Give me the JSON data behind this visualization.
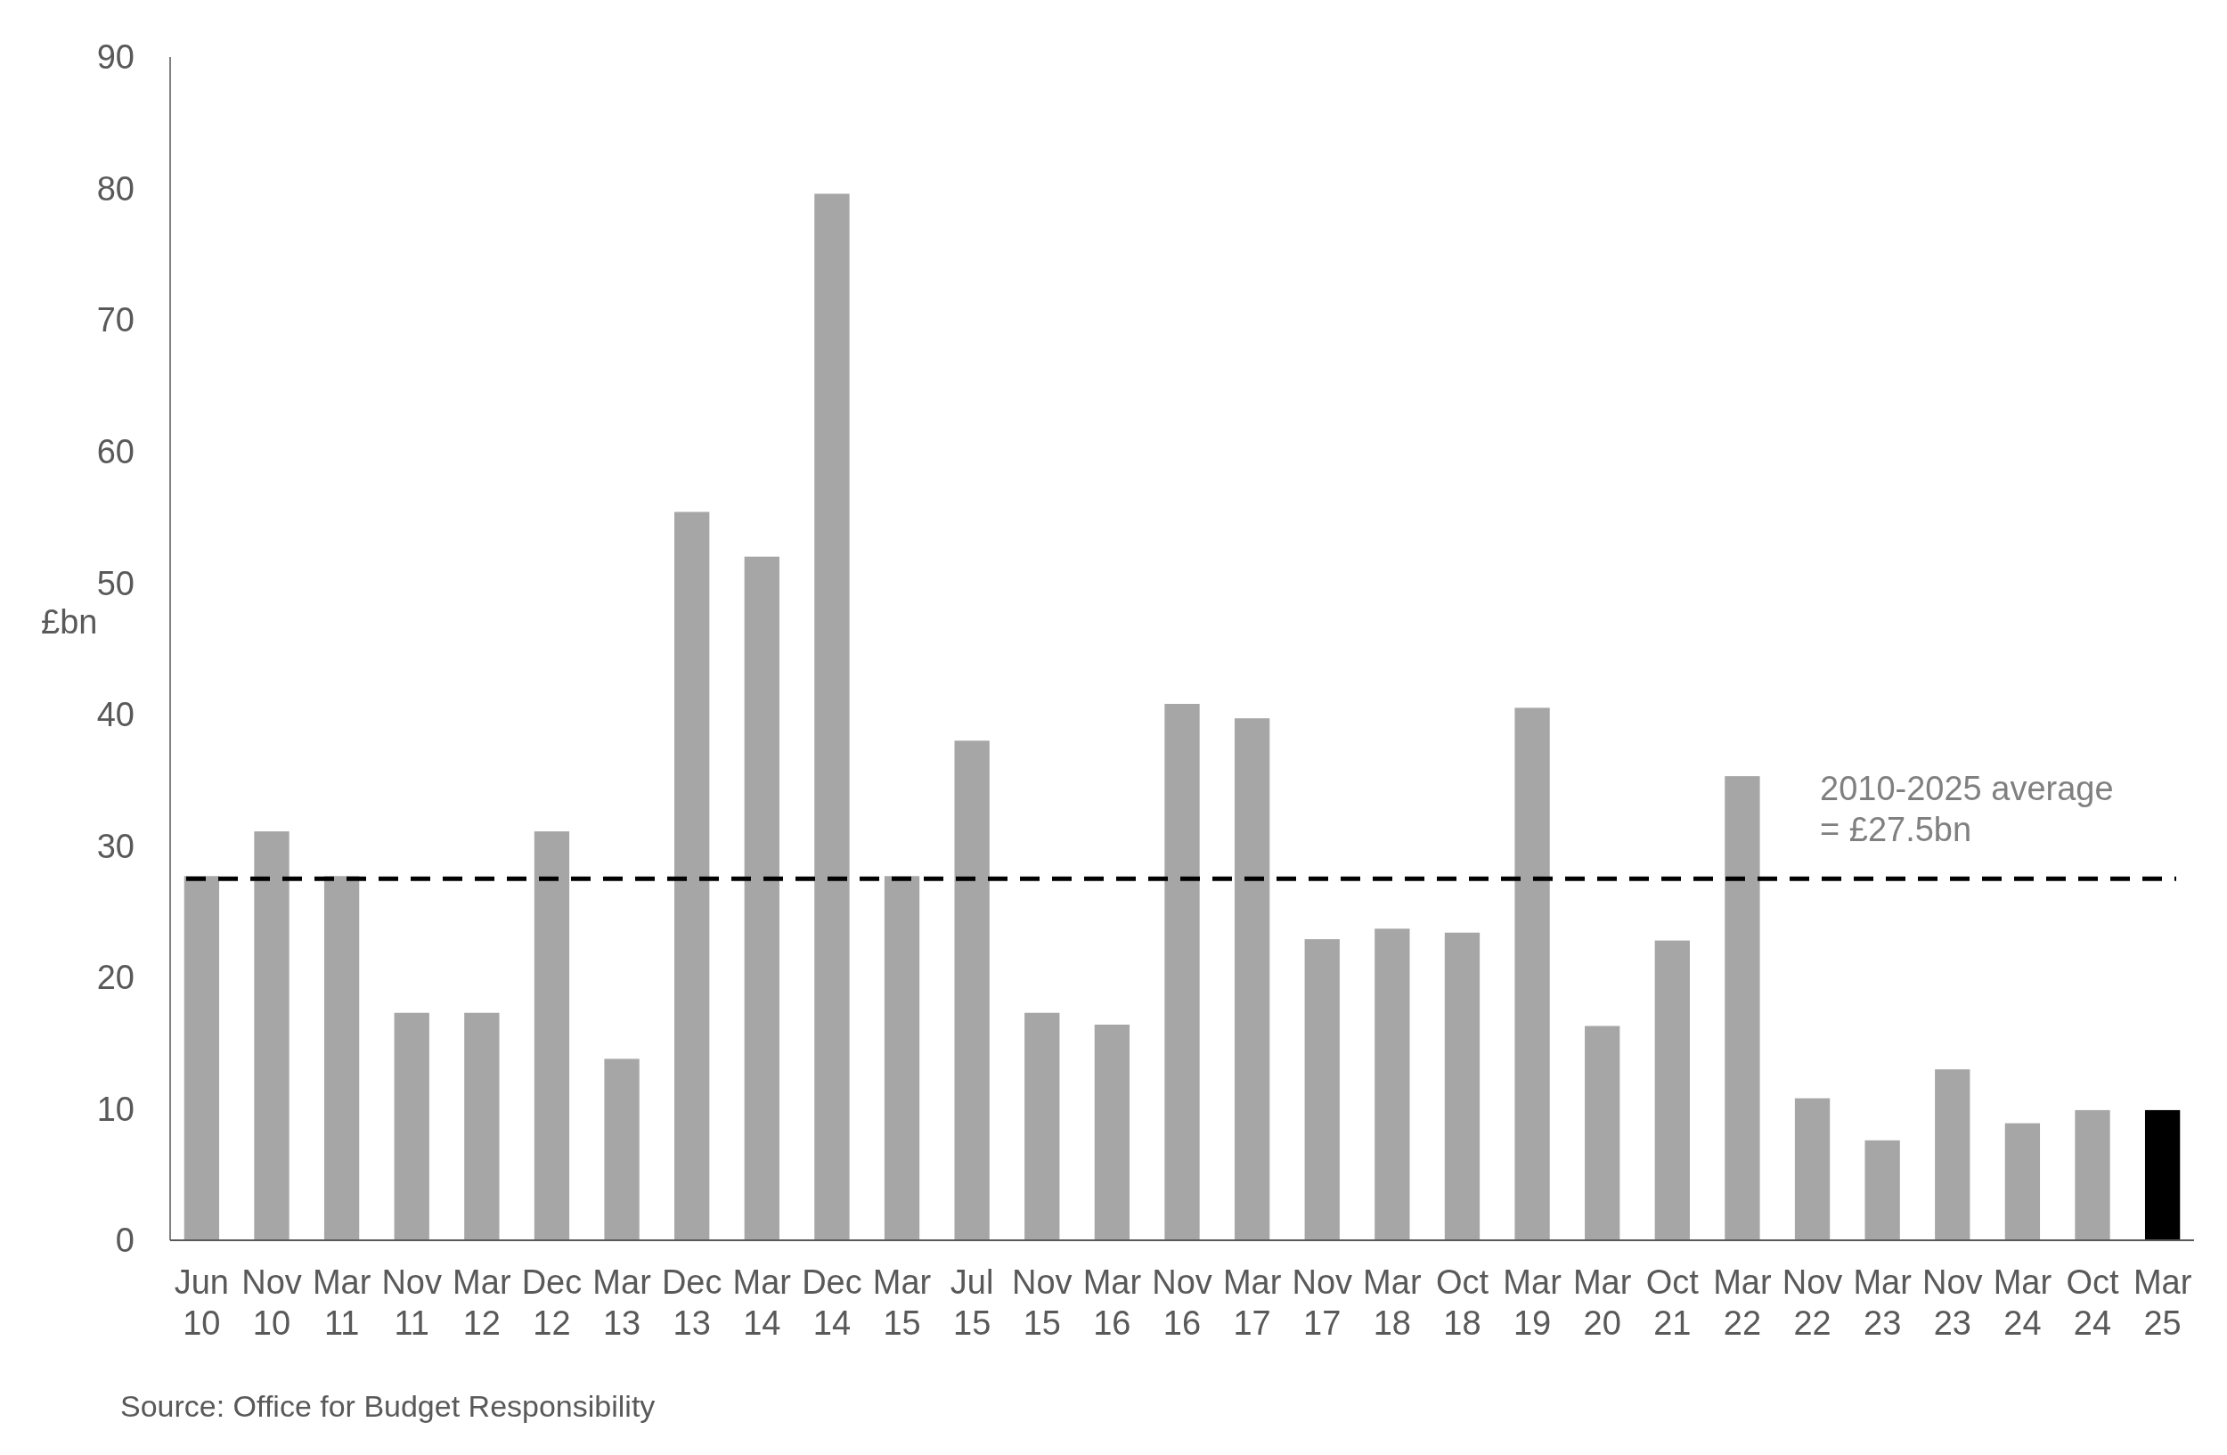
{
  "chart_data": {
    "type": "bar",
    "ylabel": "£bn",
    "categories": [
      "Jun 10",
      "Nov 10",
      "Mar 11",
      "Nov 11",
      "Mar 12",
      "Dec 12",
      "Mar 13",
      "Dec 13",
      "Mar 14",
      "Dec 14",
      "Mar 15",
      "Jul 15",
      "Nov 15",
      "Mar 16",
      "Nov 16",
      "Mar 17",
      "Nov 17",
      "Mar 18",
      "Oct 18",
      "Mar 19",
      "Mar 20",
      "Oct 21",
      "Mar 22",
      "Nov 22",
      "Mar 23",
      "Nov 23",
      "Mar 24",
      "Oct 24",
      "Mar 25"
    ],
    "values": [
      27.7,
      31.1,
      27.7,
      17.3,
      17.3,
      31.1,
      13.8,
      55.4,
      52.0,
      79.6,
      27.7,
      38.0,
      17.3,
      16.4,
      40.8,
      39.7,
      22.9,
      23.7,
      23.4,
      40.5,
      16.3,
      22.8,
      35.3,
      10.8,
      7.6,
      13.0,
      8.9,
      9.9,
      9.9
    ],
    "colors": [
      "#a6a6a6",
      "#a6a6a6",
      "#a6a6a6",
      "#a6a6a6",
      "#a6a6a6",
      "#a6a6a6",
      "#a6a6a6",
      "#a6a6a6",
      "#a6a6a6",
      "#a6a6a6",
      "#a6a6a6",
      "#a6a6a6",
      "#a6a6a6",
      "#a6a6a6",
      "#a6a6a6",
      "#a6a6a6",
      "#a6a6a6",
      "#a6a6a6",
      "#a6a6a6",
      "#a6a6a6",
      "#a6a6a6",
      "#a6a6a6",
      "#a6a6a6",
      "#a6a6a6",
      "#a6a6a6",
      "#a6a6a6",
      "#a6a6a6",
      "#a6a6a6",
      "#000000"
    ],
    "ylim": [
      0,
      90
    ],
    "yticks": [
      0,
      10,
      20,
      30,
      40,
      50,
      60,
      70,
      80,
      90
    ],
    "grid": false,
    "ref_lines": [
      {
        "axis": "y",
        "value": 27.5,
        "label": "2010-2025 average = £27.5bn",
        "color": "#000000",
        "line_style": "dashed"
      }
    ],
    "annotations": [
      "Source: Office for Budget Responsibility"
    ]
  }
}
